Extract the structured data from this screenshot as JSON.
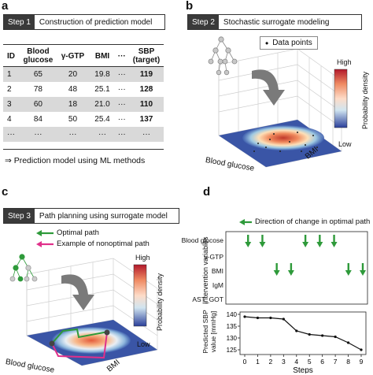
{
  "panels": {
    "a": {
      "letter": "a",
      "step_tag": "Step 1",
      "step_title": "Construction of prediction model",
      "table": {
        "headers": [
          "ID",
          "Blood glucose",
          "γ-GTP",
          "BMI",
          "···",
          "SBP (target)"
        ],
        "rows": [
          [
            "1",
            "65",
            "20",
            "19.8",
            "···",
            "119"
          ],
          [
            "2",
            "78",
            "48",
            "25.1",
            "···",
            "128"
          ],
          [
            "3",
            "60",
            "18",
            "21.0",
            "···",
            "110"
          ],
          [
            "4",
            "84",
            "50",
            "25.4",
            "···",
            "137"
          ],
          [
            "···",
            "···",
            "···",
            "···",
            "···",
            "···"
          ]
        ]
      },
      "footnote": "⇒ Prediction model using ML methods"
    },
    "b": {
      "letter": "b",
      "step_tag": "Step 2",
      "step_title": "Stochastic surrogate modeling",
      "legend_label": "Data points",
      "colorbar": {
        "high": "High",
        "low": "Low",
        "title": "Probability density"
      },
      "axis_x": "Blood glucose",
      "axis_y": "BMI"
    },
    "c": {
      "letter": "c",
      "step_tag": "Step 3",
      "step_title": "Path planning using surrogate model",
      "legend_optimal": "Optimal path",
      "legend_nonoptimal": "Example of nonoptimal path",
      "colorbar": {
        "high": "High",
        "low": "Low",
        "title": "Probability density"
      },
      "axis_x": "Blood glucose",
      "axis_y": "BMI",
      "colors": {
        "optimal": "#2e9a3a",
        "nonoptimal": "#e0308a"
      }
    },
    "d": {
      "letter": "d",
      "arrow_legend": "Direction of change in optimal path",
      "intervention_axis": "Intervention variables",
      "variables": [
        "Blood glucose",
        "γ-GTP",
        "BMI",
        "IgM",
        "AST_GOT"
      ],
      "arrows": [
        {
          "step": 1,
          "variable": "Blood glucose"
        },
        {
          "step": 2,
          "variable": "Blood glucose"
        },
        {
          "step": 3,
          "variable": "BMI"
        },
        {
          "step": 4,
          "variable": "BMI"
        },
        {
          "step": 5,
          "variable": "Blood glucose"
        },
        {
          "step": 6,
          "variable": "Blood glucose"
        },
        {
          "step": 7,
          "variable": "Blood glucose"
        },
        {
          "step": 8,
          "variable": "BMI"
        },
        {
          "step": 9,
          "variable": "BMI"
        }
      ],
      "sbp_axis": "Predicted SBP value [mmHg]",
      "x_axis": "Steps",
      "x_ticks": [
        "0",
        "1",
        "2",
        "3",
        "4",
        "5",
        "6",
        "7",
        "8",
        "9"
      ],
      "y_ticks": [
        "140",
        "135",
        "130",
        "125"
      ],
      "chart_data": {
        "type": "line",
        "x": [
          0,
          1,
          2,
          3,
          4,
          5,
          6,
          7,
          8,
          9
        ],
        "values": [
          139,
          138.5,
          138.5,
          138,
          133,
          131.5,
          131,
          130.5,
          128,
          125
        ],
        "xlabel": "Steps",
        "ylabel": "Predicted SBP value [mmHg]",
        "ylim": [
          123,
          141
        ]
      }
    }
  }
}
